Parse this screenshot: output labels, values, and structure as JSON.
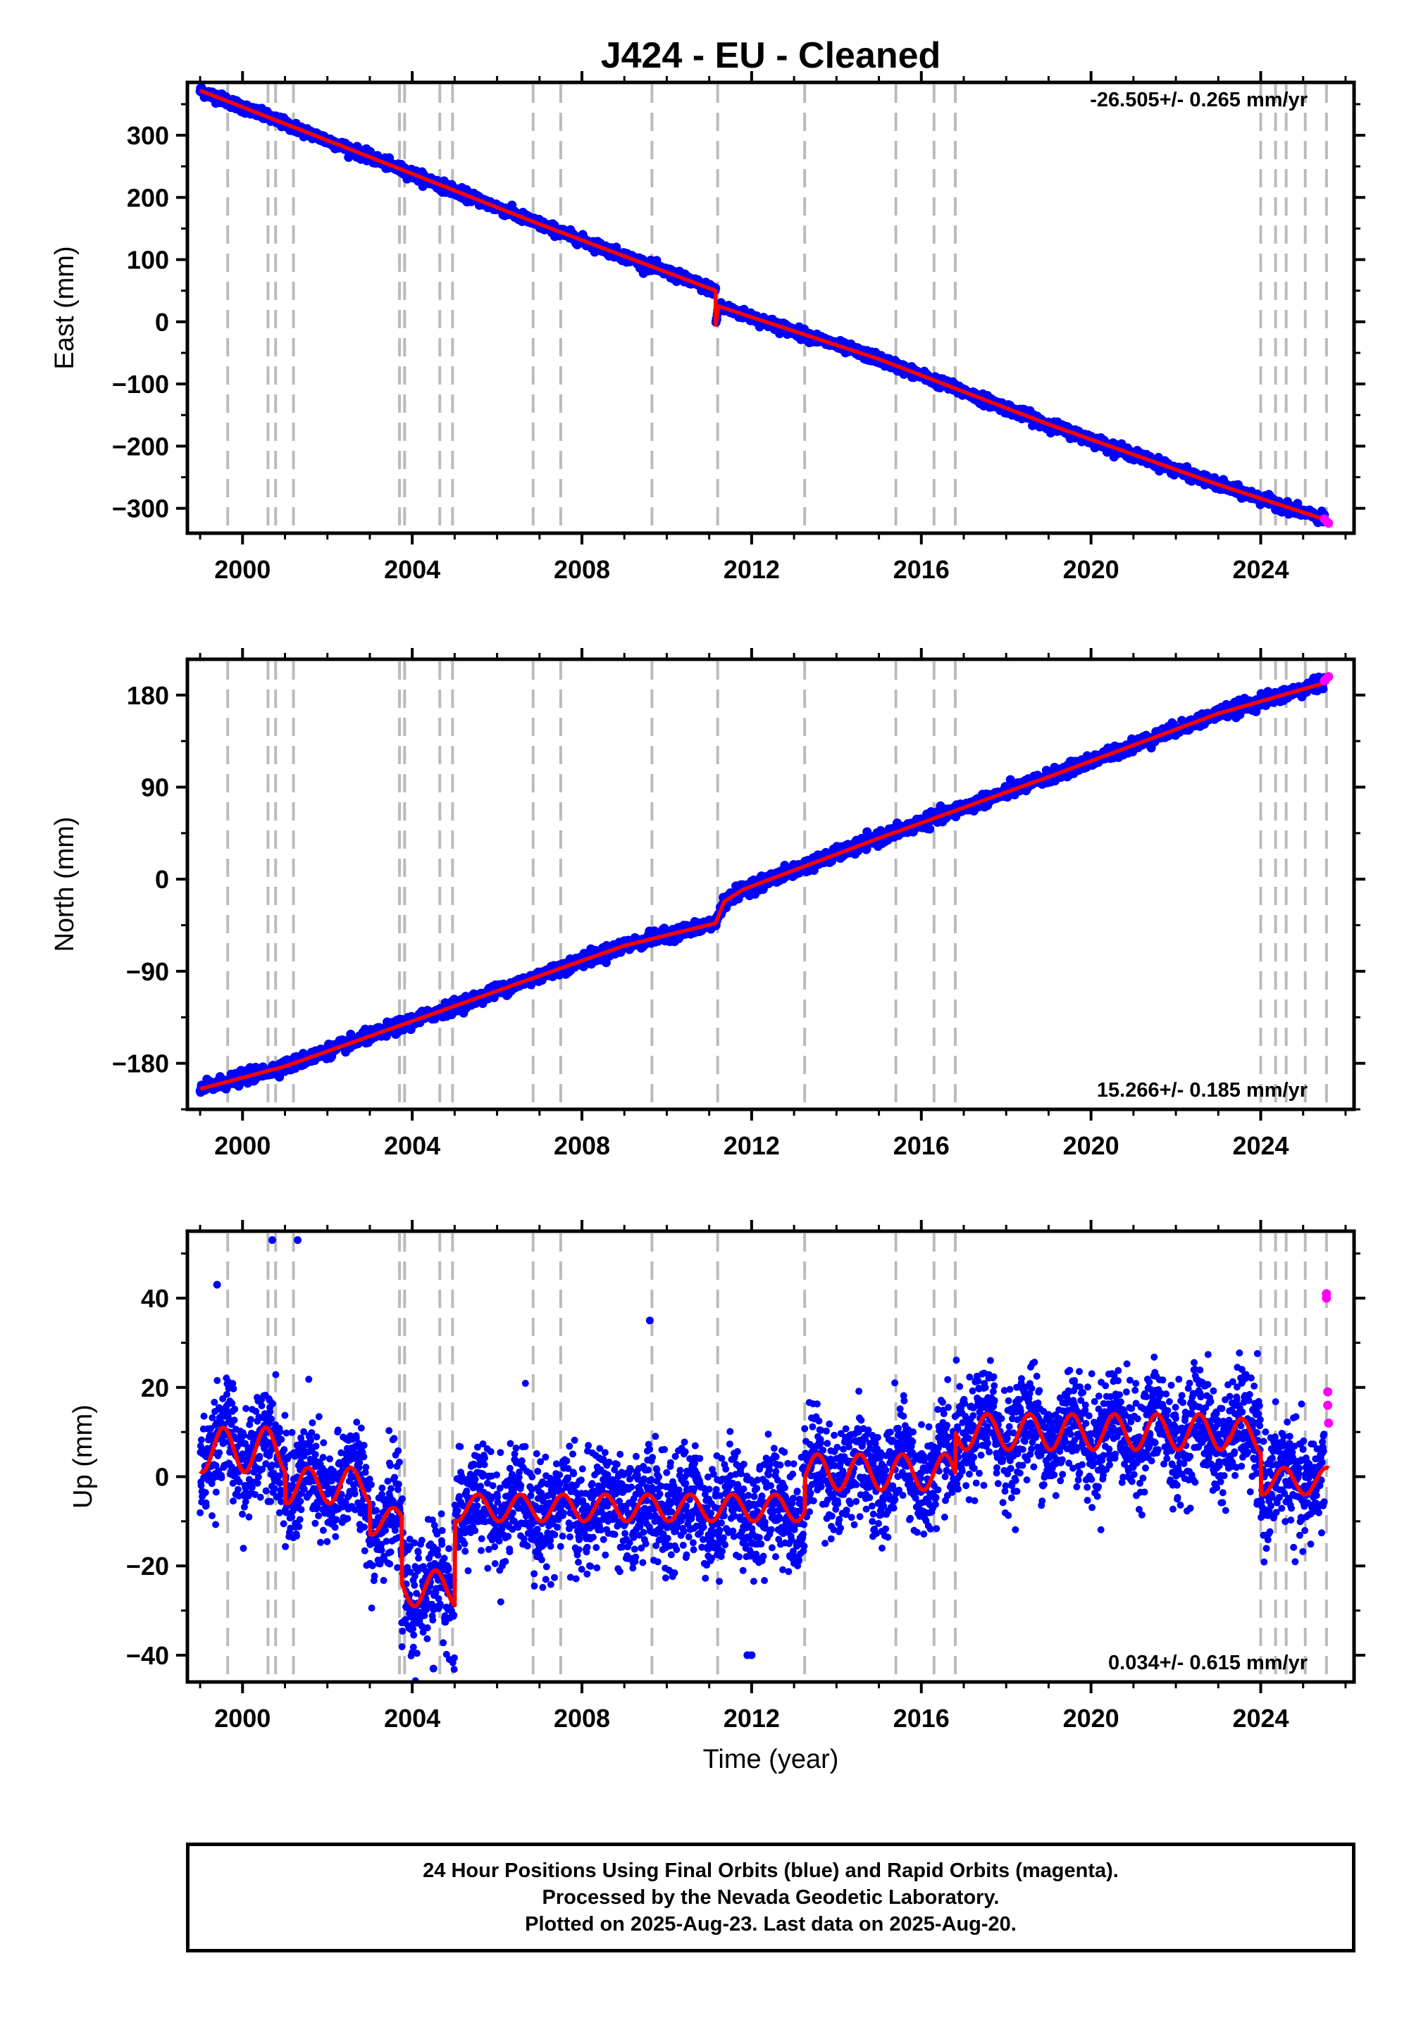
{
  "title": "J424  - EU - Cleaned",
  "colors": {
    "final_orbits": "#0000ff",
    "rapid_orbits": "#ff00ff",
    "model": "#ff0000",
    "event_lines": "#bbbbbb",
    "frame": "#000000"
  },
  "caption": {
    "line1": "24 Hour Positions Using Final Orbits (blue) and Rapid Orbits (magenta).",
    "line2": "Processed by the Nevada Geodetic Laboratory.",
    "line3": "Plotted on 2025-Aug-23. Last data on 2025-Aug-20."
  },
  "chart_data": [
    {
      "type": "scatter",
      "ylabel": "East (mm)",
      "xlabel": "",
      "xlim": [
        1998.7,
        2026.2
      ],
      "ylim": [
        -340,
        385
      ],
      "x_ticks": [
        2000,
        2004,
        2008,
        2012,
        2016,
        2020,
        2024
      ],
      "y_ticks": [
        -300,
        -200,
        -100,
        0,
        100,
        200,
        300
      ],
      "rate_label": "-26.505+/- 0.265 mm/yr",
      "rate_position": "top-right",
      "event_lines": [
        1999.65,
        2000.6,
        2000.78,
        2001.2,
        2003.7,
        2003.82,
        2004.65,
        2004.95,
        2006.85,
        2007.5,
        2009.65,
        2011.2,
        2013.25,
        2015.4,
        2016.3,
        2016.8,
        2024.0,
        2024.35,
        2024.6,
        2025.05,
        2025.55
      ],
      "model": [
        [
          1999.0,
          372
        ],
        [
          2003.0,
          265
        ],
        [
          2007.0,
          157
        ],
        [
          2011.15,
          50
        ],
        [
          2011.15,
          -5
        ],
        [
          2011.22,
          25
        ],
        [
          2015.0,
          -60
        ],
        [
          2019.0,
          -165
        ],
        [
          2023.0,
          -262
        ],
        [
          2025.6,
          -320
        ]
      ],
      "series": [
        {
          "name": "Final Orbits",
          "noise": 4
        },
        {
          "name": "Rapid Orbits",
          "x": [
            2025.5,
            2025.55,
            2025.6
          ],
          "y": [
            -317,
            -321,
            -324
          ]
        }
      ]
    },
    {
      "type": "scatter",
      "ylabel": "North (mm)",
      "xlabel": "",
      "xlim": [
        1998.7,
        2026.2
      ],
      "ylim": [
        -225,
        215
      ],
      "x_ticks": [
        2000,
        2004,
        2008,
        2012,
        2016,
        2020,
        2024
      ],
      "y_ticks": [
        -180,
        -90,
        0,
        90,
        180
      ],
      "rate_label": "15.266+/- 0.185 mm/yr",
      "rate_position": "bottom-right",
      "event_lines": [
        1999.65,
        2000.6,
        2000.78,
        2001.2,
        2003.7,
        2003.82,
        2004.65,
        2004.95,
        2006.85,
        2007.5,
        2009.65,
        2011.2,
        2013.25,
        2015.4,
        2016.3,
        2016.8,
        2024.0,
        2024.35,
        2024.6,
        2025.05,
        2025.55
      ],
      "model": [
        [
          1999.0,
          -205
        ],
        [
          2001.0,
          -183
        ],
        [
          2005.0,
          -124
        ],
        [
          2009.0,
          -65
        ],
        [
          2011.15,
          -43
        ],
        [
          2011.35,
          -22
        ],
        [
          2011.8,
          -10
        ],
        [
          2015.0,
          40
        ],
        [
          2019.0,
          100
        ],
        [
          2023.0,
          162
        ],
        [
          2025.6,
          193
        ]
      ],
      "series": [
        {
          "name": "Final Orbits",
          "noise": 3
        },
        {
          "name": "Rapid Orbits",
          "x": [
            2025.5,
            2025.55,
            2025.6
          ],
          "y": [
            194,
            196,
            198
          ]
        }
      ]
    },
    {
      "type": "scatter",
      "ylabel": "Up (mm)",
      "xlabel": "Time (year)",
      "xlim": [
        1998.7,
        2026.2
      ],
      "ylim": [
        -46,
        55
      ],
      "x_ticks": [
        2000,
        2004,
        2008,
        2012,
        2016,
        2020,
        2024
      ],
      "y_ticks": [
        -40,
        -20,
        0,
        20,
        40
      ],
      "rate_label": "0.034+/- 0.615 mm/yr",
      "rate_position": "bottom-right",
      "event_lines": [
        1999.65,
        2000.6,
        2000.78,
        2001.2,
        2003.7,
        2003.82,
        2004.65,
        2004.95,
        2006.85,
        2007.5,
        2009.65,
        2011.2,
        2013.25,
        2015.4,
        2016.3,
        2016.8,
        2024.0,
        2024.35,
        2024.6,
        2025.05,
        2025.55
      ],
      "model_segments": [
        {
          "from": 1999.0,
          "to": 2001.0,
          "base": 6,
          "amp": 5
        },
        {
          "from": 2001.0,
          "to": 2003.0,
          "base": -2,
          "amp": 4
        },
        {
          "from": 2003.0,
          "to": 2003.75,
          "base": -10,
          "amp": 3
        },
        {
          "from": 2003.75,
          "to": 2005.0,
          "base": -25,
          "amp": 4
        },
        {
          "from": 2005.0,
          "to": 2013.25,
          "base": -7,
          "amp": 3
        },
        {
          "from": 2013.25,
          "to": 2016.8,
          "base": 1,
          "amp": 4
        },
        {
          "from": 2016.8,
          "to": 2023.25,
          "base": 10,
          "amp": 4
        },
        {
          "from": 2023.25,
          "to": 2024.0,
          "base": 9,
          "amp": 4
        },
        {
          "from": 2024.0,
          "to": 2025.6,
          "base": -1,
          "amp": 3
        }
      ],
      "outliers": [
        [
          2000.7,
          53
        ],
        [
          2001.3,
          53
        ],
        [
          1999.4,
          43
        ],
        [
          2009.6,
          35
        ],
        [
          2011.9,
          -40
        ],
        [
          2012.0,
          -40
        ],
        [
          2004.5,
          -43
        ]
      ],
      "series": [
        {
          "name": "Final Orbits",
          "noise": 6
        },
        {
          "name": "Rapid Orbits",
          "x": [
            2025.55,
            2025.55,
            2025.58,
            2025.58,
            2025.6
          ],
          "y": [
            41,
            40,
            19,
            16,
            12
          ]
        }
      ]
    }
  ]
}
